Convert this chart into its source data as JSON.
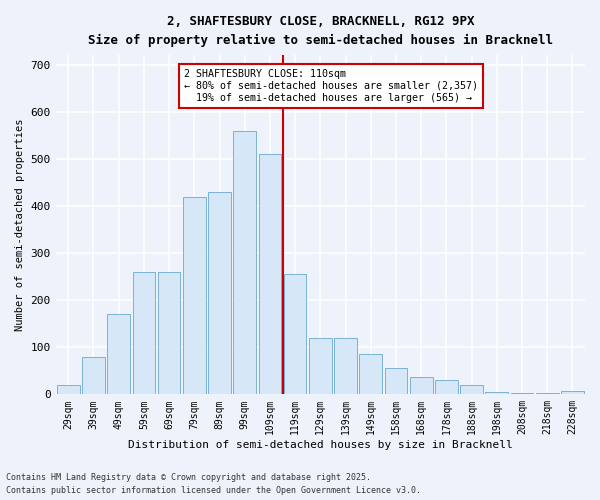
{
  "title_line1": "2, SHAFTESBURY CLOSE, BRACKNELL, RG12 9PX",
  "title_line2": "Size of property relative to semi-detached houses in Bracknell",
  "xlabel": "Distribution of semi-detached houses by size in Bracknell",
  "ylabel": "Number of semi-detached properties",
  "bin_labels": [
    "29sqm",
    "39sqm",
    "49sqm",
    "59sqm",
    "69sqm",
    "79sqm",
    "89sqm",
    "99sqm",
    "109sqm",
    "119sqm",
    "129sqm",
    "139sqm",
    "149sqm",
    "158sqm",
    "168sqm",
    "178sqm",
    "188sqm",
    "198sqm",
    "208sqm",
    "218sqm",
    "228sqm"
  ],
  "bar_values": [
    20,
    80,
    170,
    260,
    260,
    420,
    430,
    560,
    510,
    255,
    120,
    120,
    85,
    55,
    37,
    30,
    20,
    5,
    3,
    2,
    8
  ],
  "bar_color": "#d6e8f7",
  "bar_edge_color": "#7ab3d4",
  "vline_color": "#cc0000",
  "annotation_text": "2 SHAFTESBURY CLOSE: 110sqm\n← 80% of semi-detached houses are smaller (2,357)\n  19% of semi-detached houses are larger (565) →",
  "annotation_box_color": "#ffffff",
  "annotation_box_edge": "#cc0000",
  "background_color": "#eef2fa",
  "grid_color": "#ffffff",
  "footer_line1": "Contains HM Land Registry data © Crown copyright and database right 2025.",
  "footer_line2": "Contains public sector information licensed under the Open Government Licence v3.0.",
  "ylim": [
    0,
    720
  ],
  "yticks": [
    0,
    100,
    200,
    300,
    400,
    500,
    600,
    700
  ]
}
